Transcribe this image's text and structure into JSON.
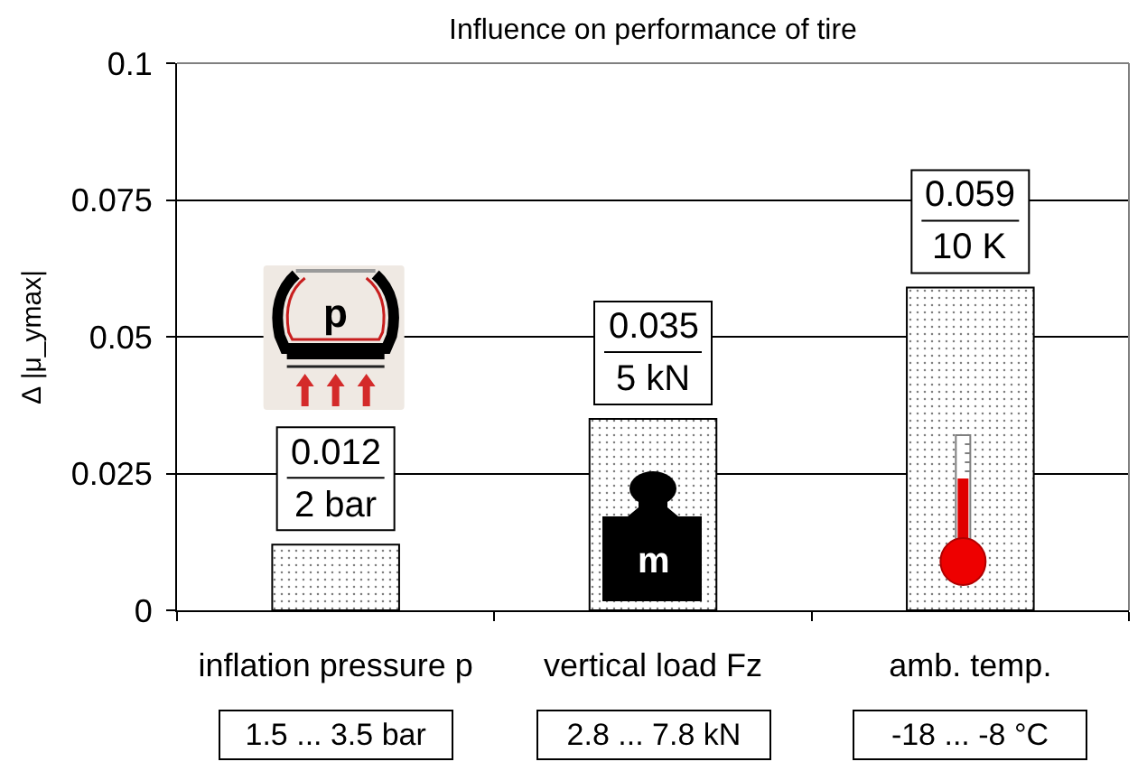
{
  "chart_data": {
    "type": "bar",
    "title": "Influence on performance of tire",
    "ylabel": "∆ |μ_ymax|",
    "categories": [
      "inflation pressure p",
      "vertical load Fz",
      "amb. temp."
    ],
    "values": [
      0.012,
      0.035,
      0.059
    ],
    "color": "#000000",
    "ylim": [
      0,
      0.1
    ],
    "yticks": [
      0,
      0.025,
      0.05,
      0.075,
      0.1
    ],
    "grid": "y",
    "data_labels": true,
    "annotations": [
      {
        "text": "2 bar",
        "x": "inflation pressure p",
        "y": 0.012
      },
      {
        "text": "5 kN",
        "x": "vertical load Fz",
        "y": 0.035
      },
      {
        "text": "10 K",
        "x": "amb. temp.",
        "y": 0.059
      },
      "1.5 ... 3.5 bar",
      "2.8 ... 7.8 kN",
      "-18 ... -8 °C",
      "p",
      "m"
    ]
  }
}
